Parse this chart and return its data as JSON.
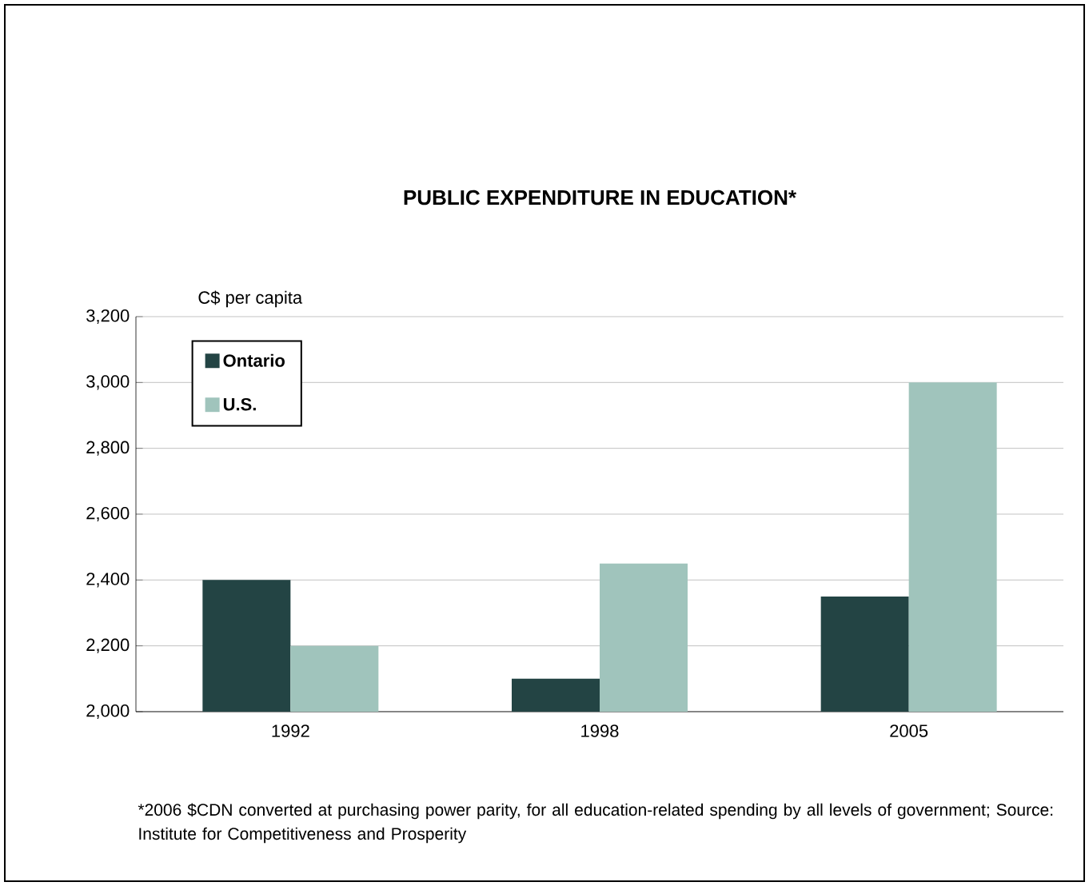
{
  "chart_data": {
    "type": "bar",
    "title": "PUBLIC EXPENDITURE IN EDUCATION*",
    "ylabel": "C$ per capita",
    "categories": [
      "1992",
      "1998",
      "2005"
    ],
    "series": [
      {
        "name": "Ontario",
        "color": "#234444",
        "values": [
          2400,
          2100,
          2350
        ]
      },
      {
        "name": "U.S.",
        "color": "#a0c4bc",
        "values": [
          2200,
          2450,
          3000
        ]
      }
    ],
    "ylim": [
      2000,
      3200
    ],
    "yticks": [
      {
        "value": 2000,
        "label": "2,000"
      },
      {
        "value": 2200,
        "label": "2,200"
      },
      {
        "value": 2400,
        "label": "2,400"
      },
      {
        "value": 2600,
        "label": "2,600"
      },
      {
        "value": 2800,
        "label": "2,800"
      },
      {
        "value": 3000,
        "label": "3,000"
      },
      {
        "value": 3200,
        "label": "3,200"
      }
    ],
    "grid": "y",
    "legend": "top left",
    "annotations": [
      "*2006 $CDN converted at purchasing power parity, for all education-related spending by all levels of government; Source: Institute for Competitiveness and Prosperity"
    ]
  }
}
